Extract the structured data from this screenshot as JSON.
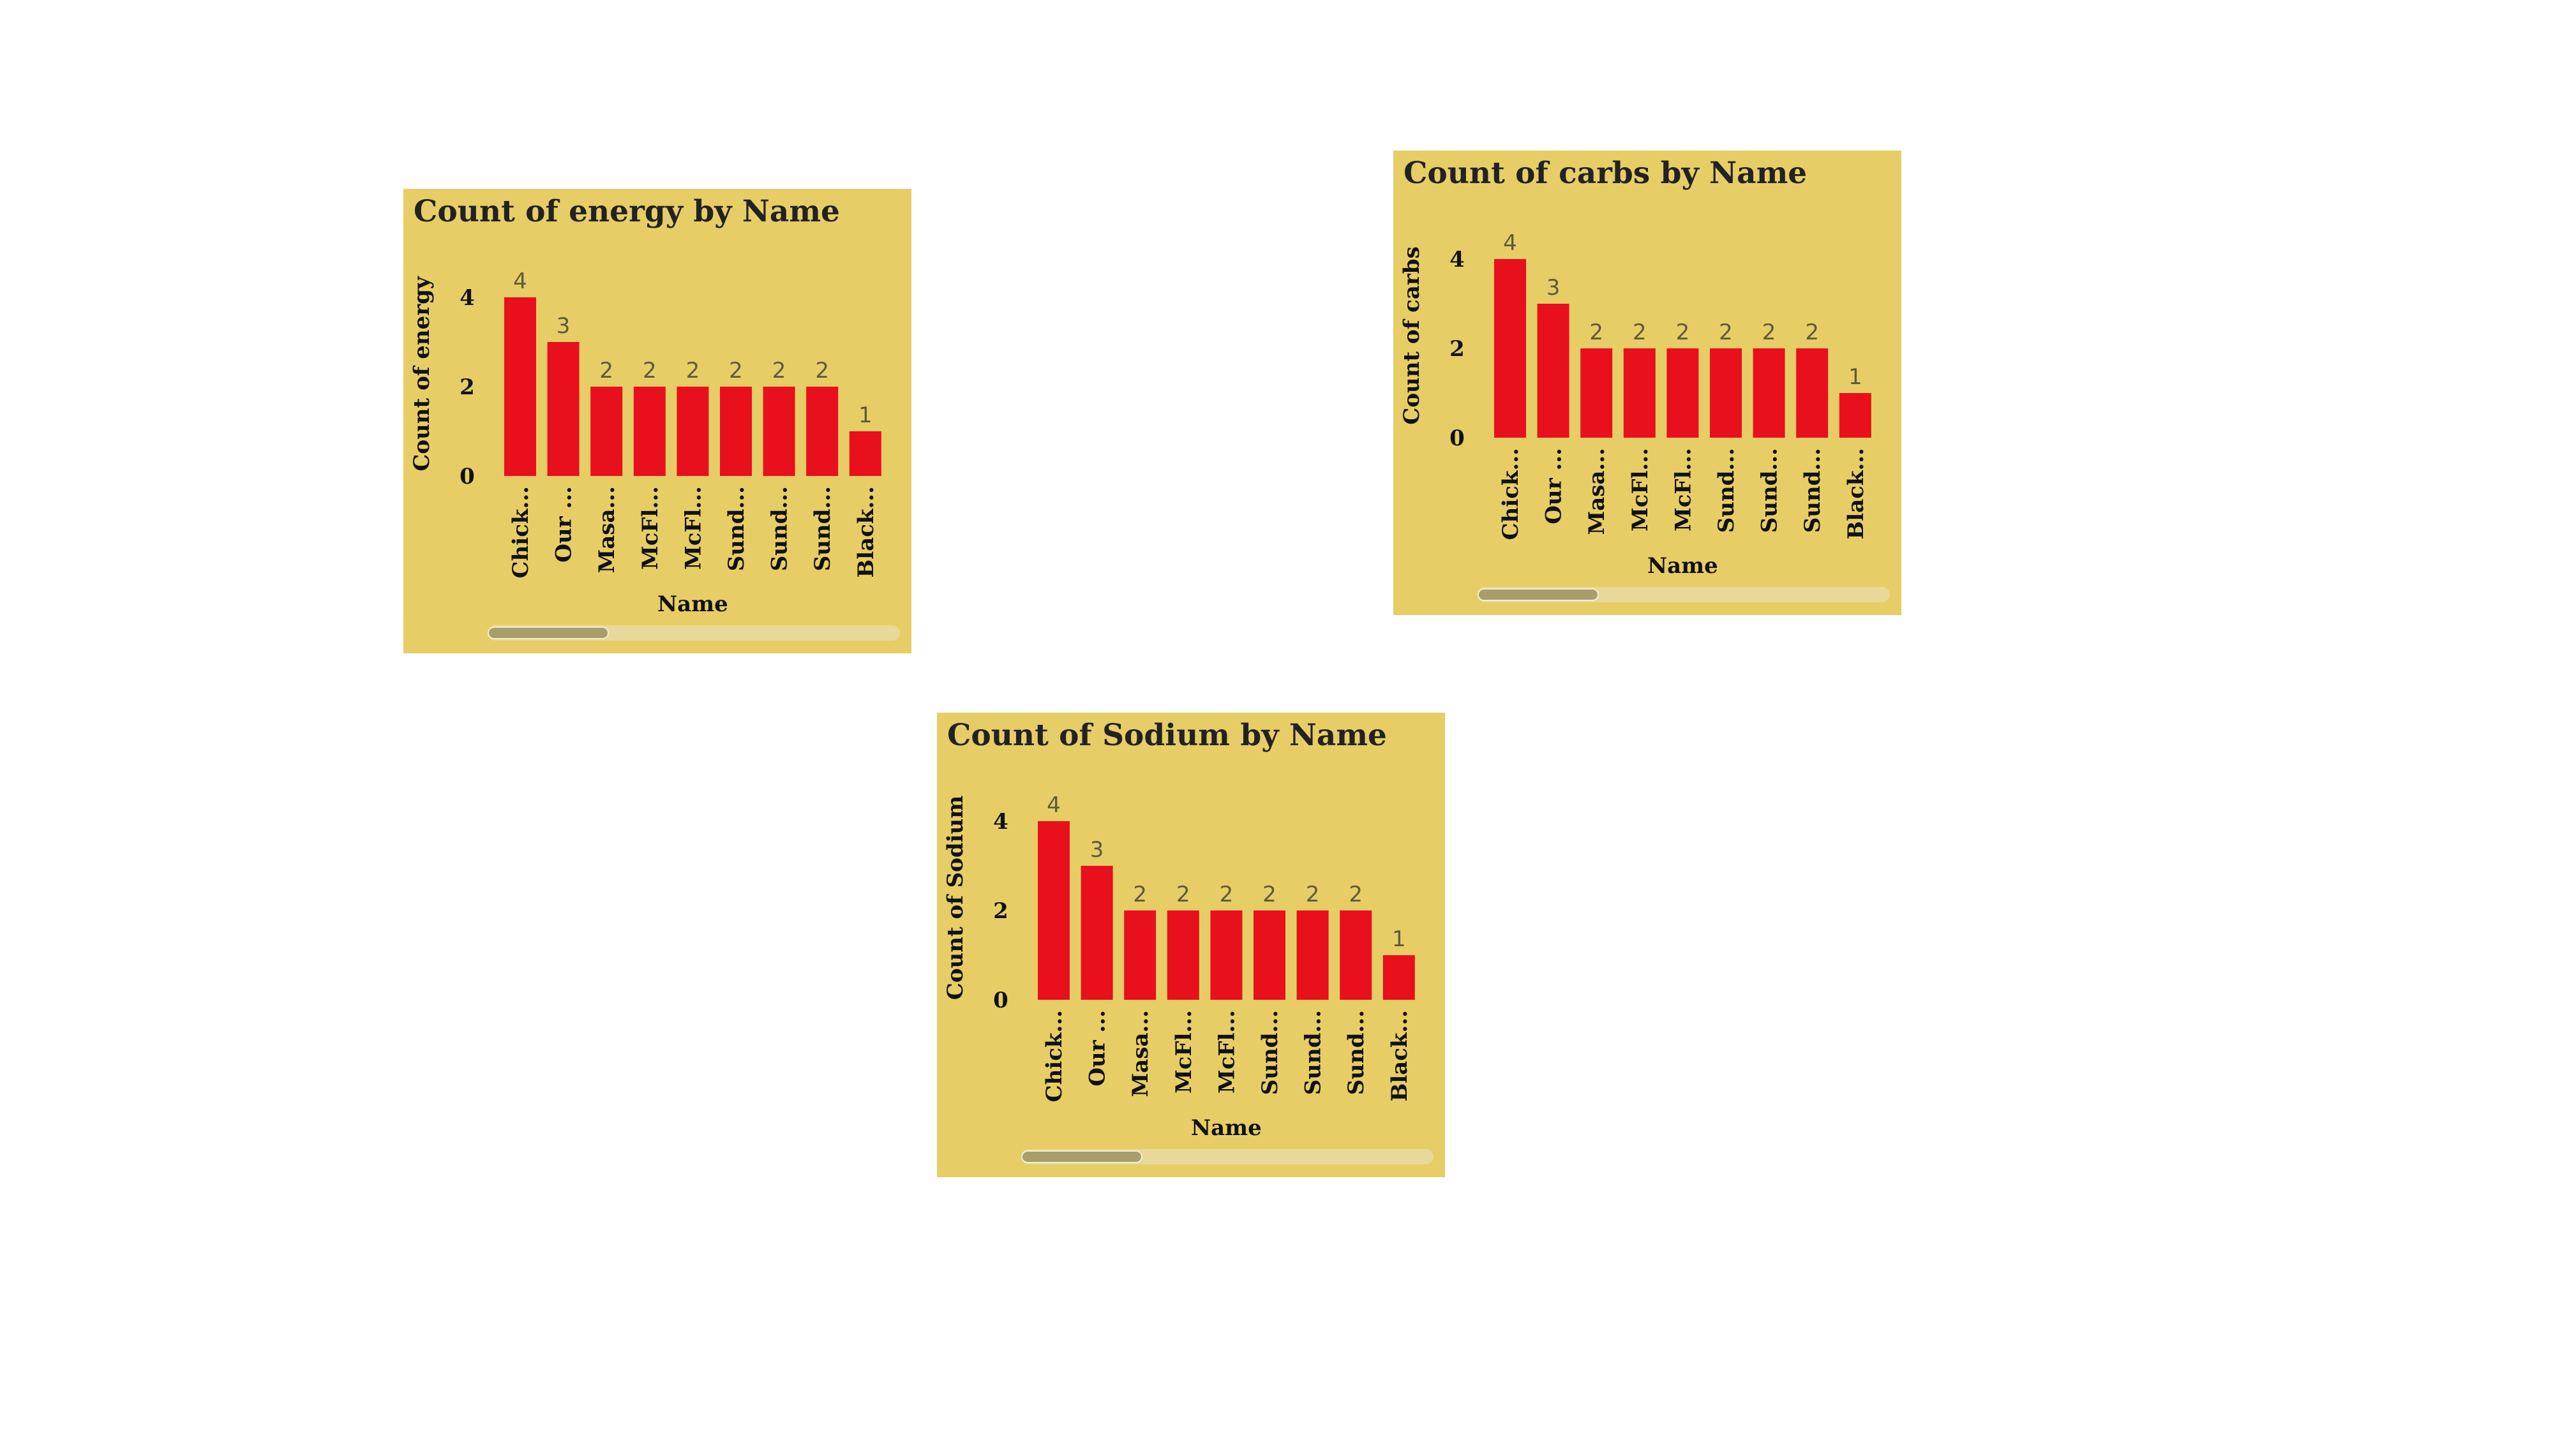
{
  "colors": {
    "card_bg": "#e6cd66",
    "bar": "#e8101c",
    "title_text": "#222222",
    "data_label": "#605a3c"
  },
  "chart_data": [
    {
      "type": "bar",
      "title": "Count of energy by Name",
      "xlabel": "Name",
      "ylabel": "Count of energy",
      "categories": [
        "Chick...",
        "Our ...",
        "Masa...",
        "McFl...",
        "McFl...",
        "Sund...",
        "Sund...",
        "Sund...",
        "Black..."
      ],
      "values": [
        4,
        3,
        2,
        2,
        2,
        2,
        2,
        2,
        1
      ],
      "yticks": [
        "0",
        "2",
        "4"
      ],
      "ylim": [
        0,
        4
      ],
      "grid": false,
      "data_labels": true
    },
    {
      "type": "bar",
      "title": "Count of carbs by Name",
      "xlabel": "Name",
      "ylabel": "Count of carbs",
      "categories": [
        "Chick...",
        "Our ...",
        "Masa...",
        "McFl...",
        "McFl...",
        "Sund...",
        "Sund...",
        "Sund...",
        "Black..."
      ],
      "values": [
        4,
        3,
        2,
        2,
        2,
        2,
        2,
        2,
        1
      ],
      "yticks": [
        "0",
        "2",
        "4"
      ],
      "ylim": [
        0,
        4
      ],
      "grid": false,
      "data_labels": true
    },
    {
      "type": "bar",
      "title": "Count of Sodium by Name",
      "xlabel": "Name",
      "ylabel": "Count of Sodium",
      "categories": [
        "Chick...",
        "Our ...",
        "Masa...",
        "McFl...",
        "McFl...",
        "Sund...",
        "Sund...",
        "Sund...",
        "Black..."
      ],
      "values": [
        4,
        3,
        2,
        2,
        2,
        2,
        2,
        2,
        1
      ],
      "yticks": [
        "0",
        "2",
        "4"
      ],
      "ylim": [
        0,
        4
      ],
      "grid": false,
      "data_labels": true
    }
  ]
}
